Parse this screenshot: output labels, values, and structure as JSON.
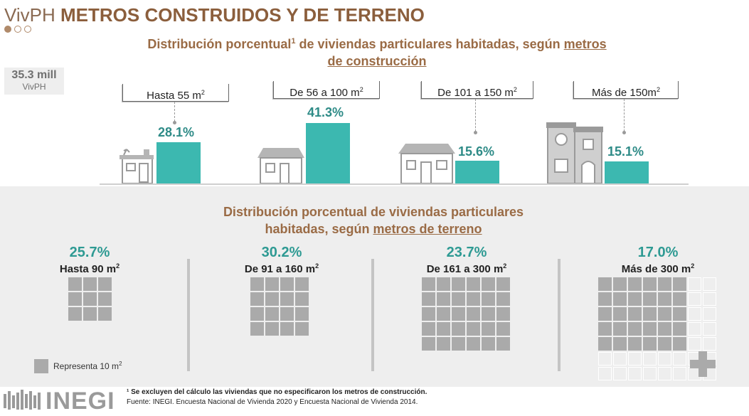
{
  "header": {
    "title_prefix": "VivPH",
    "title_main": "METROS CONSTRUIDOS Y DE TERRENO",
    "subtitle_a": "Distribución porcentual",
    "subtitle_sup": "1",
    "subtitle_b": " de viviendas particulares habitadas, según ",
    "subtitle_u1": "metros",
    "subtitle_u2": "de construcción"
  },
  "total": {
    "value": "35.3 mill",
    "label": "VivPH"
  },
  "construction": [
    {
      "label": "Hasta 55 m",
      "sup": "2",
      "pct": "28.1%",
      "value": 28.1
    },
    {
      "label": "De 56 a 100 m",
      "sup": "2",
      "pct": "41.3%",
      "value": 41.3
    },
    {
      "label": "De 101 a 150 m",
      "sup": "2",
      "pct": "15.6%",
      "value": 15.6
    },
    {
      "label": "Más de 150m",
      "sup": "2",
      "pct": "15.1%",
      "value": 15.1
    }
  ],
  "terrain_header": {
    "line1": "Distribución porcentual de viviendas particulares",
    "line2a": "habitadas, según ",
    "line2u": "metros de terreno"
  },
  "terrain": [
    {
      "pct": "25.7%",
      "label": "Hasta 90 m",
      "sup": "2"
    },
    {
      "pct": "30.2%",
      "label": "De 91 a 160 m",
      "sup": "2"
    },
    {
      "pct": "23.7%",
      "label": "De 161 a 300 m",
      "sup": "2"
    },
    {
      "pct": "17.0%",
      "label": "Más de 300 m",
      "sup": "2"
    }
  ],
  "legend": {
    "text": "Representa 10 m",
    "sup": "2"
  },
  "footer": {
    "note": "¹ Se excluyen del cálculo las viviendas que no especificaron los metros de construcción.",
    "source": "Fuente: INEGI. Encuesta Nacional de Vivienda 2020 y Encuesta Nacional de Vivienda 2014."
  },
  "logo": {
    "text": "INEGI"
  },
  "colors": {
    "accent": "#3cb8b0",
    "brown": "#9a6b45",
    "gray": "#aaaaaa"
  },
  "chart_data": {
    "type": "bar",
    "categories": [
      "Hasta 55 m2",
      "De 56 a 100 m2",
      "De 101 a 150 m2",
      "Más de 150m2"
    ],
    "values": [
      28.1,
      41.3,
      15.6,
      15.1
    ],
    "title": "Distribución porcentual de viviendas particulares habitadas, según metros de construcción"
  }
}
